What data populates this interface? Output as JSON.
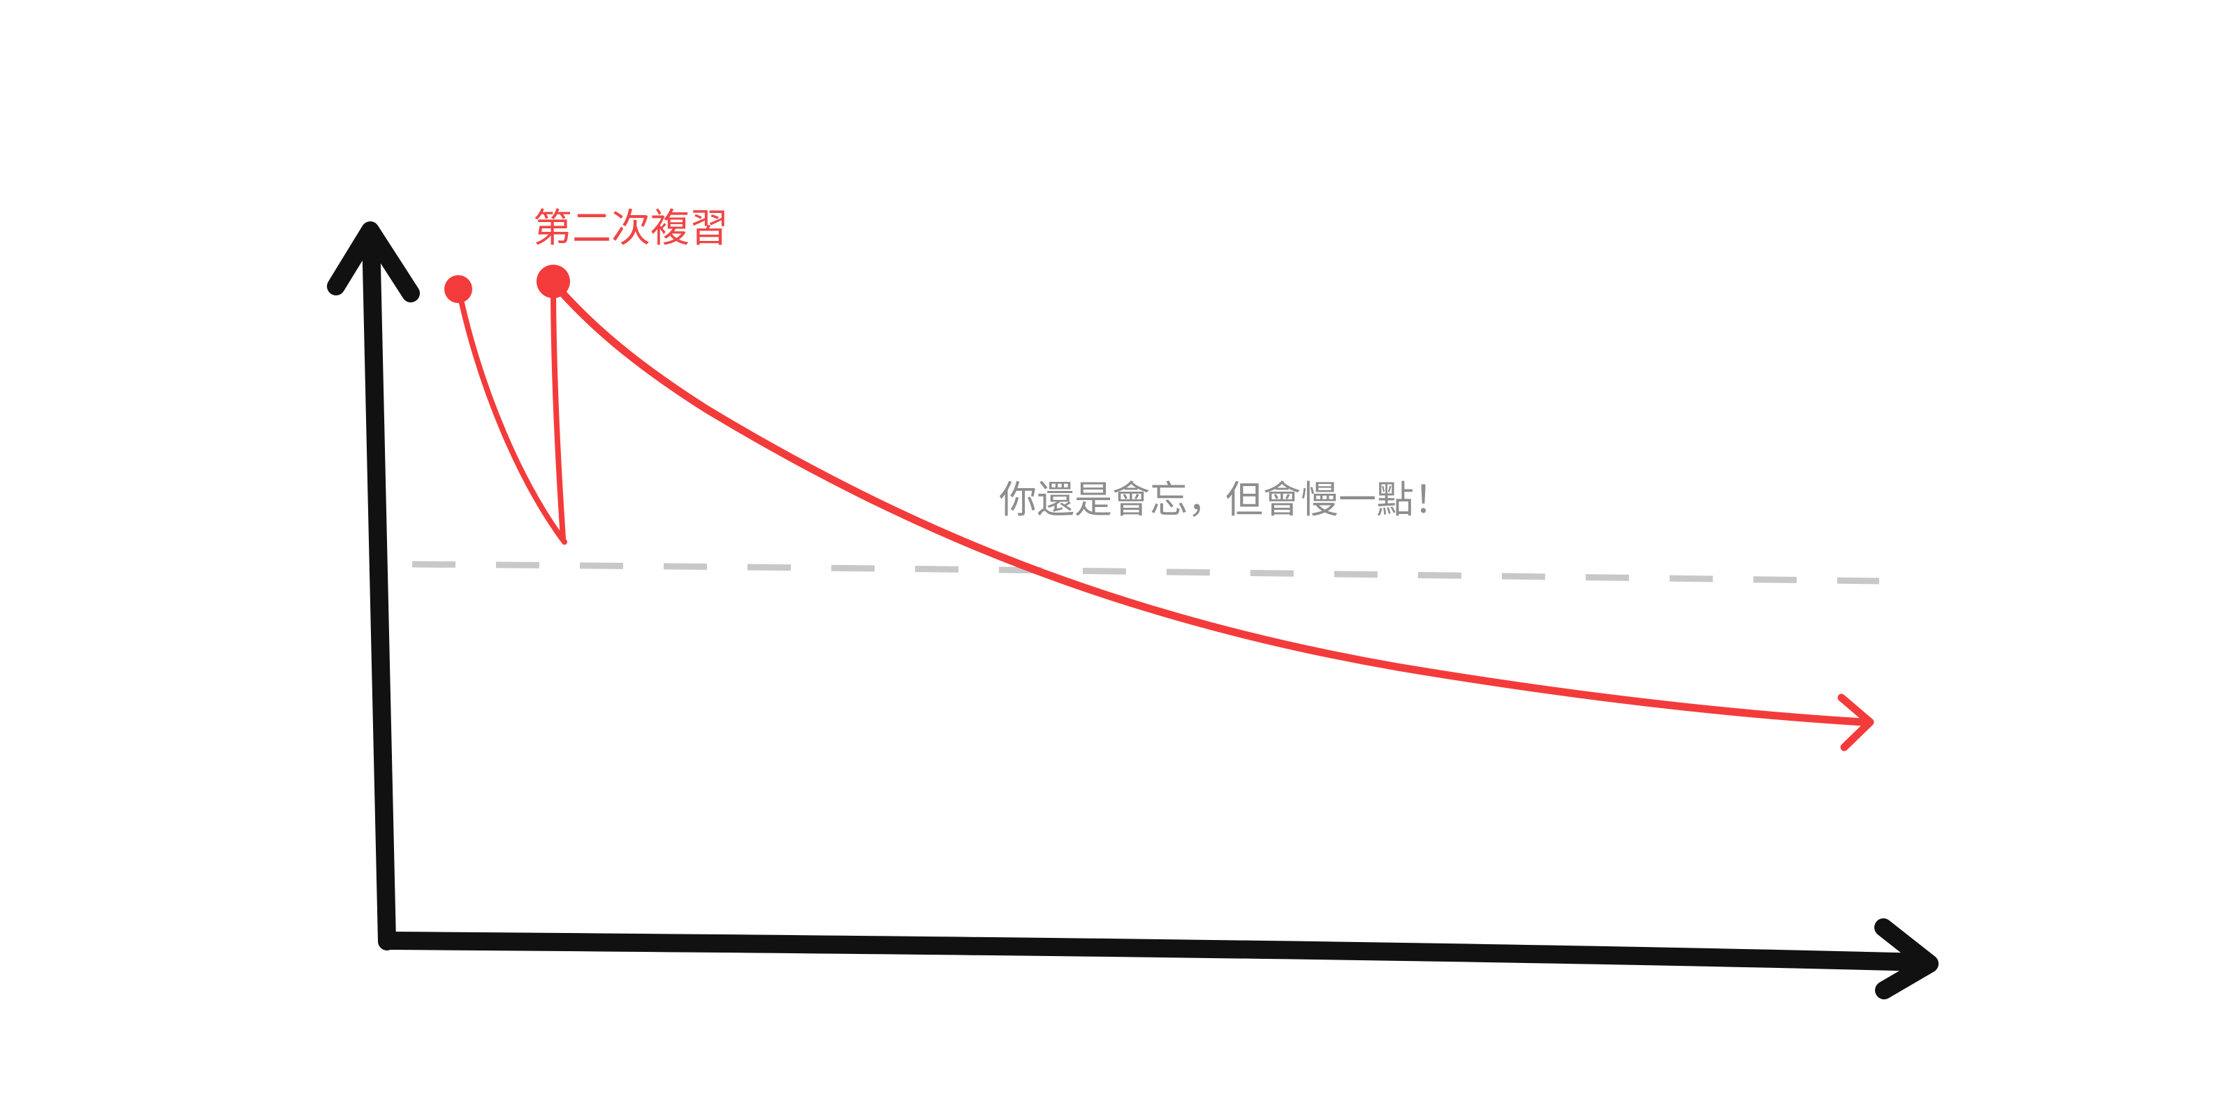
{
  "labels": {
    "review": "第二次複習",
    "note": "你還是會忘，但會慢一點！"
  },
  "colors": {
    "axis": "#111111",
    "curve": "#f43b3b",
    "guide": "#c8c8c8",
    "review_text": "#f04545",
    "note_text": "#8d8d8d"
  }
}
